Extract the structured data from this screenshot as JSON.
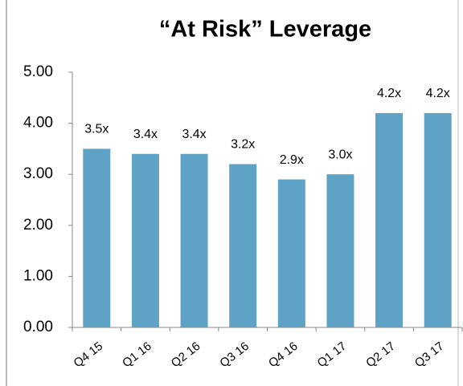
{
  "chart_data": {
    "type": "bar",
    "title": "“At Risk” Leverage",
    "categories": [
      "Q4 15",
      "Q1 16",
      "Q2 16",
      "Q3 16",
      "Q4 16",
      "Q1 17",
      "Q2 17",
      "Q3 17"
    ],
    "values": [
      3.5,
      3.4,
      3.4,
      3.2,
      2.9,
      3.0,
      4.2,
      4.2
    ],
    "value_labels": [
      "3.5x",
      "3.4x",
      "3.4x",
      "3.2x",
      "2.9x",
      "3.0x",
      "4.2x",
      "4.2x"
    ],
    "color": "#5ea3c5",
    "ylim": [
      0,
      5
    ],
    "yticks": [
      {
        "value": 0,
        "label": "0.00"
      },
      {
        "value": 1,
        "label": "1.00"
      },
      {
        "value": 2,
        "label": "2.00"
      },
      {
        "value": 3,
        "label": "3.00"
      },
      {
        "value": 4,
        "label": "4.00"
      },
      {
        "value": 5,
        "label": "5.00"
      }
    ],
    "grid": false
  }
}
